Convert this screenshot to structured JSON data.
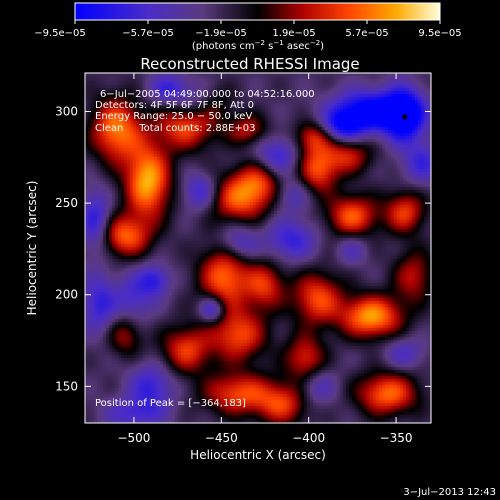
{
  "chart_data": {
    "type": "heatmap",
    "title": "Reconstructed RHESSI Image",
    "xlabel": "Heliocentric X (arcsec)",
    "ylabel": "Heliocentric Y (arcsec)",
    "xlim": [
      -528,
      -330
    ],
    "ylim": [
      130,
      321
    ],
    "x_ticks": [
      -500,
      -450,
      -400,
      -350
    ],
    "x_tick_labels": [
      "−500",
      "−450",
      "−400",
      "−350"
    ],
    "y_ticks": [
      150,
      200,
      250,
      300
    ],
    "y_tick_labels": [
      "150",
      "200",
      "250",
      "300"
    ],
    "colorbar": {
      "min": -9.5e-05,
      "max": 9.5e-05,
      "tick_labels": [
        "−9.5e−05",
        "−5.7e−05",
        "−1.9e−05",
        "1.9e−05",
        "5.7e−05",
        "9.5e−05"
      ],
      "units_text": "(photons cm",
      "units_sup1": "−2",
      "units_mid": " s",
      "units_sup2": "−1",
      "units_mid2": " asec",
      "units_sup3": "−2",
      "units_end": ")"
    },
    "annotations": [
      "6−Jul−2005 04:49:00.000 to 04:52:16.000",
      "Detectors: 4F 5F 6F 7F 8F, Att 0",
      "Energy Range: 25.0 − 50.0 keV",
      "Clean     Total counts: 2.88E+03"
    ],
    "peak_label": "Position of Peak = [−364,183]",
    "peak_position": [
      -364,
      183
    ],
    "timestamp": "3−Jul−2013 12:43",
    "sources": [
      {
        "x": -510,
        "y": 290,
        "sx": 10,
        "sy": 12,
        "a": 0.85
      },
      {
        "x": -492,
        "y": 262,
        "sx": 9,
        "sy": 14,
        "a": 1.0
      },
      {
        "x": -505,
        "y": 232,
        "sx": 10,
        "sy": 8,
        "a": 0.75
      },
      {
        "x": -470,
        "y": 292,
        "sx": 12,
        "sy": 9,
        "a": 0.7
      },
      {
        "x": -455,
        "y": 305,
        "sx": 8,
        "sy": 7,
        "a": 0.55
      },
      {
        "x": -440,
        "y": 252,
        "sx": 12,
        "sy": 9,
        "a": 0.7
      },
      {
        "x": -428,
        "y": 262,
        "sx": 10,
        "sy": 8,
        "a": 0.6
      },
      {
        "x": -448,
        "y": 210,
        "sx": 10,
        "sy": 12,
        "a": 0.8
      },
      {
        "x": -425,
        "y": 205,
        "sx": 8,
        "sy": 9,
        "a": 0.6
      },
      {
        "x": -395,
        "y": 268,
        "sx": 8,
        "sy": 9,
        "a": 0.7
      },
      {
        "x": -398,
        "y": 286,
        "sx": 7,
        "sy": 6,
        "a": 0.55
      },
      {
        "x": -378,
        "y": 276,
        "sx": 10,
        "sy": 7,
        "a": 0.55
      },
      {
        "x": -375,
        "y": 243,
        "sx": 10,
        "sy": 8,
        "a": 0.75
      },
      {
        "x": -345,
        "y": 245,
        "sx": 8,
        "sy": 8,
        "a": 0.65
      },
      {
        "x": -364,
        "y": 188,
        "sx": 12,
        "sy": 8,
        "a": 0.95
      },
      {
        "x": -395,
        "y": 198,
        "sx": 10,
        "sy": 10,
        "a": 0.7
      },
      {
        "x": -402,
        "y": 165,
        "sx": 8,
        "sy": 9,
        "a": 0.6
      },
      {
        "x": -355,
        "y": 146,
        "sx": 12,
        "sy": 8,
        "a": 0.8
      },
      {
        "x": -470,
        "y": 170,
        "sx": 10,
        "sy": 9,
        "a": 0.65
      },
      {
        "x": -440,
        "y": 178,
        "sx": 11,
        "sy": 10,
        "a": 0.7
      },
      {
        "x": -440,
        "y": 146,
        "sx": 14,
        "sy": 8,
        "a": 0.7
      },
      {
        "x": -415,
        "y": 140,
        "sx": 10,
        "sy": 8,
        "a": 0.6
      },
      {
        "x": -505,
        "y": 178,
        "sx": 7,
        "sy": 8,
        "a": 0.45
      },
      {
        "x": -340,
        "y": 210,
        "sx": 8,
        "sy": 10,
        "a": 0.5
      },
      {
        "x": -435,
        "y": 290,
        "sx": 8,
        "sy": 6,
        "a": 0.5
      },
      {
        "x": -365,
        "y": 300,
        "sx": 15,
        "sy": 8,
        "a": -0.9
      },
      {
        "x": -345,
        "y": 298,
        "sx": 8,
        "sy": 10,
        "a": -0.95
      },
      {
        "x": -380,
        "y": 292,
        "sx": 8,
        "sy": 6,
        "a": -0.6
      },
      {
        "x": -460,
        "y": 305,
        "sx": 9,
        "sy": 7,
        "a": -0.55
      },
      {
        "x": -480,
        "y": 312,
        "sx": 8,
        "sy": 6,
        "a": -0.5
      },
      {
        "x": -418,
        "y": 275,
        "sx": 9,
        "sy": 8,
        "a": -0.5
      },
      {
        "x": -462,
        "y": 256,
        "sx": 7,
        "sy": 7,
        "a": -0.5
      },
      {
        "x": -522,
        "y": 240,
        "sx": 6,
        "sy": 12,
        "a": -0.55
      },
      {
        "x": -520,
        "y": 195,
        "sx": 7,
        "sy": 11,
        "a": -0.5
      },
      {
        "x": -500,
        "y": 198,
        "sx": 8,
        "sy": 10,
        "a": -0.4
      },
      {
        "x": -488,
        "y": 208,
        "sx": 6,
        "sy": 6,
        "a": -0.5
      },
      {
        "x": -440,
        "y": 228,
        "sx": 8,
        "sy": 7,
        "a": -0.45
      },
      {
        "x": -410,
        "y": 230,
        "sx": 10,
        "sy": 8,
        "a": -0.5
      },
      {
        "x": -410,
        "y": 255,
        "sx": 8,
        "sy": 7,
        "a": -0.35
      },
      {
        "x": -335,
        "y": 272,
        "sx": 8,
        "sy": 8,
        "a": -0.45
      },
      {
        "x": -455,
        "y": 192,
        "sx": 5,
        "sy": 5,
        "a": -0.6
      },
      {
        "x": -490,
        "y": 150,
        "sx": 9,
        "sy": 9,
        "a": -0.5
      },
      {
        "x": -500,
        "y": 135,
        "sx": 12,
        "sy": 6,
        "a": -0.4
      },
      {
        "x": -395,
        "y": 150,
        "sx": 8,
        "sy": 7,
        "a": -0.35
      },
      {
        "x": -345,
        "y": 168,
        "sx": 8,
        "sy": 6,
        "a": -0.35
      },
      {
        "x": -375,
        "y": 225,
        "sx": 6,
        "sy": 6,
        "a": -0.3
      }
    ]
  }
}
